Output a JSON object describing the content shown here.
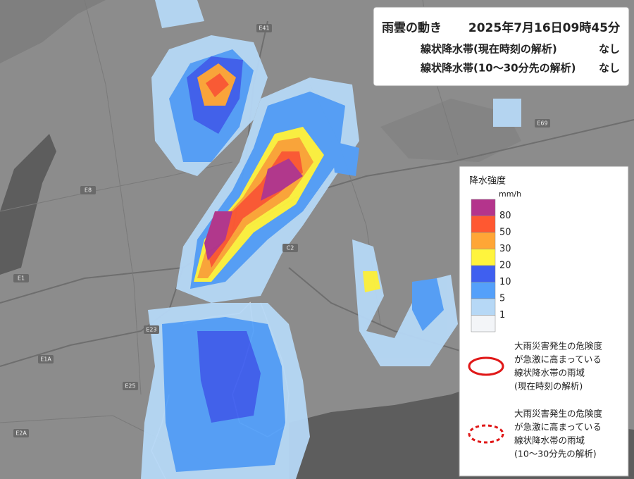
{
  "header": {
    "title": "雨雲の動き",
    "timestamp": "2025年7月16日09時45分",
    "rows": [
      {
        "label": "線状降水帯(現在時刻の解析)",
        "value": "なし"
      },
      {
        "label": "線状降水帯(10～30分先の解析)",
        "value": "なし"
      }
    ]
  },
  "legend": {
    "title": "降水強度",
    "unit": "mm/h",
    "swatches": [
      "#b4348c",
      "#ff5831",
      "#ffa636",
      "#fff43d",
      "#3f5ff0",
      "#54a0fa",
      "#b6d8f6",
      "#f3f5f8"
    ],
    "thresholds": [
      "80",
      "50",
      "30",
      "20",
      "10",
      "5",
      "1"
    ],
    "notes": [
      {
        "style": "solid",
        "lines": [
          "大雨災害発生の危険度",
          "が急激に高まっている",
          "線状降水帯の雨域",
          "(現在時刻の解析)"
        ]
      },
      {
        "style": "dashed",
        "lines": [
          "大雨災害発生の危険度",
          "が急激に高まっている",
          "線状降水帯の雨域",
          "(10～30分先の解析)"
        ]
      }
    ]
  },
  "map": {
    "labels": [
      "E41",
      "E1",
      "E1A",
      "E23",
      "E25",
      "E69",
      "C2",
      "E8",
      "E2A"
    ]
  }
}
